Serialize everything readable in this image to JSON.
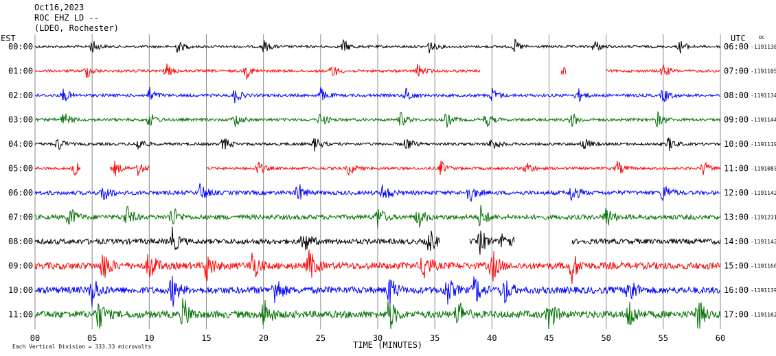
{
  "header": {
    "date": "Oct16,2023",
    "station": "ROC EHZ LD --",
    "network": "(LDEO, Rochester)"
  },
  "left_axis_label": "EST",
  "right_axis_label": "UTC",
  "dc_label": "DC",
  "footer_note": "Each Vertical Division = 333.33 microvolts",
  "chart_data": {
    "type": "line",
    "title": "",
    "xlabel": "TIME (MINUTES)",
    "xlim": [
      0,
      60
    ],
    "x_ticks": [
      "00",
      "05",
      "10",
      "15",
      "20",
      "25",
      "30",
      "35",
      "40",
      "45",
      "50",
      "55",
      "60"
    ],
    "vertical_division_microvolts": 333.33,
    "colors": [
      "#000000",
      "#ff0000",
      "#0000ff",
      "#007000"
    ],
    "series": [
      {
        "est": "00:00",
        "utc": "06:00",
        "dc": "-1191138",
        "color": "#000000",
        "noise": 0.35,
        "gaps": [],
        "events": [
          5,
          12.5,
          20,
          27,
          34.5,
          42,
          49,
          56.5
        ]
      },
      {
        "est": "01:00",
        "utc": "07:00",
        "dc": "-1191105",
        "color": "#ff0000",
        "noise": 0.4,
        "gaps": [
          [
            39,
            46
          ],
          [
            46.5,
            50
          ]
        ],
        "events": [
          4.5,
          11.5,
          18.5,
          26,
          33.5,
          46,
          55
        ]
      },
      {
        "est": "02:00",
        "utc": "08:00",
        "dc": "-1191134",
        "color": "#0000ff",
        "noise": 0.5,
        "gaps": [],
        "events": [
          2.5,
          10,
          17.5,
          25,
          32.5,
          40,
          47.5,
          55
        ]
      },
      {
        "est": "03:00",
        "utc": "09:00",
        "dc": "-1191144",
        "color": "#007000",
        "noise": 0.5,
        "gaps": [],
        "events": [
          2.5,
          10,
          17.5,
          25,
          32,
          36,
          39.5,
          47,
          54.5
        ]
      },
      {
        "est": "04:00",
        "utc": "10:00",
        "dc": "-1191119",
        "color": "#000000",
        "noise": 0.45,
        "gaps": [],
        "events": [
          2,
          9,
          16.5,
          24.5,
          32.5,
          40,
          48,
          55.5
        ]
      },
      {
        "est": "05:00",
        "utc": "11:00",
        "dc": "-1191083",
        "color": "#ff0000",
        "noise": 0.45,
        "gaps": [
          [
            4,
            6.5
          ],
          [
            10,
            15
          ]
        ],
        "events": [
          3.5,
          7,
          9,
          19.5,
          27.5,
          35.5,
          43,
          51,
          58.5
        ]
      },
      {
        "est": "06:00",
        "utc": "12:00",
        "dc": "-1191142",
        "color": "#0000ff",
        "noise": 0.9,
        "gaps": [],
        "events": [
          6,
          14.5,
          23,
          30.5,
          38,
          47,
          55
        ]
      },
      {
        "est": "07:00",
        "utc": "13:00",
        "dc": "-1191231",
        "color": "#007000",
        "noise": 1.1,
        "gaps": [],
        "events": [
          3,
          8,
          12,
          30,
          33.5,
          39,
          50
        ]
      },
      {
        "est": "08:00",
        "utc": "14:00",
        "dc": "-1191142",
        "color": "#000000",
        "noise": 1.3,
        "gaps": [
          [
            35.5,
            38
          ],
          [
            42,
            47
          ]
        ],
        "events": [
          12,
          23.5,
          34.5,
          39,
          41
        ]
      },
      {
        "est": "09:00",
        "utc": "15:00",
        "dc": "-1191166",
        "color": "#ff0000",
        "noise": 1.8,
        "gaps": [],
        "events": [
          6,
          10,
          15,
          19,
          24,
          34,
          40,
          47
        ]
      },
      {
        "est": "10:00",
        "utc": "16:00",
        "dc": "-1191139",
        "color": "#0000ff",
        "noise": 1.8,
        "gaps": [],
        "events": [
          5,
          12,
          21,
          31,
          36,
          38.5,
          41,
          52
        ]
      },
      {
        "est": "11:00",
        "utc": "17:00",
        "dc": "-1191162",
        "color": "#007000",
        "noise": 1.9,
        "gaps": [],
        "events": [
          5.5,
          13,
          20,
          31,
          37,
          45,
          52,
          58
        ]
      }
    ]
  }
}
